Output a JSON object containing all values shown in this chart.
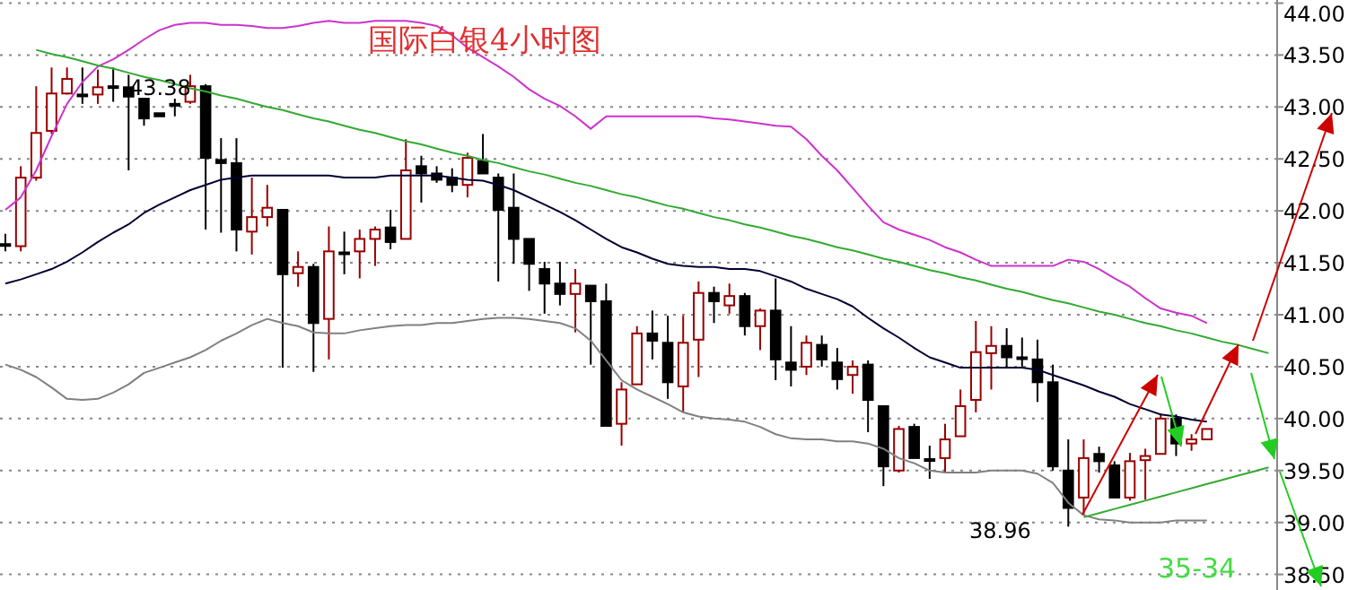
{
  "chart_data": {
    "type": "candlestick",
    "title": "国际白银4小时图",
    "categories": [
      null,
      null,
      null,
      null,
      null,
      null,
      null,
      null,
      null,
      null,
      null,
      null,
      null,
      null,
      null,
      null,
      null,
      null,
      null,
      null,
      null,
      null,
      null,
      null,
      null,
      null,
      null,
      null,
      null,
      null,
      null,
      null,
      null,
      null,
      null,
      null,
      null,
      null,
      null,
      null,
      null,
      null,
      null,
      null,
      null,
      null,
      null,
      null,
      null,
      null,
      null,
      null,
      null,
      null,
      null,
      null,
      null,
      null,
      null,
      null,
      null,
      null,
      null,
      null,
      null,
      null,
      null,
      null,
      null,
      null,
      null,
      null,
      null,
      null,
      null,
      null,
      null,
      null,
      null,
      null,
      null,
      null,
      null
    ],
    "ohlc": [
      [
        41.68,
        41.78,
        41.61,
        41.68
      ],
      [
        41.66,
        42.43,
        41.61,
        42.32
      ],
      [
        42.32,
        43.2,
        42.29,
        42.75
      ],
      [
        42.77,
        43.38,
        42.74,
        43.13
      ],
      [
        43.13,
        43.38,
        43.12,
        43.27
      ],
      [
        43.12,
        43.38,
        43.03,
        43.12
      ],
      [
        43.12,
        43.36,
        43.03,
        43.19
      ],
      [
        43.2,
        43.38,
        43.05,
        43.2
      ],
      [
        43.19,
        43.31,
        42.39,
        43.1
      ],
      [
        43.08,
        43.08,
        42.82,
        42.89
      ],
      [
        42.94,
        42.94,
        42.91,
        42.91
      ],
      [
        43.03,
        43.08,
        42.91,
        43.03
      ],
      [
        43.05,
        43.31,
        43.03,
        43.2
      ],
      [
        43.2,
        43.22,
        41.82,
        42.51
      ],
      [
        42.49,
        42.7,
        41.79,
        42.46
      ],
      [
        42.46,
        42.7,
        41.61,
        41.82
      ],
      [
        41.8,
        42.32,
        41.58,
        41.94
      ],
      [
        41.94,
        42.25,
        41.85,
        42.03
      ],
      [
        42.01,
        42.01,
        40.49,
        41.39
      ],
      [
        41.4,
        41.61,
        41.27,
        41.46
      ],
      [
        41.46,
        41.49,
        40.45,
        40.92
      ],
      [
        40.96,
        41.85,
        40.57,
        41.61
      ],
      [
        41.6,
        41.8,
        41.39,
        41.6
      ],
      [
        41.61,
        41.82,
        41.35,
        41.73
      ],
      [
        41.73,
        41.85,
        41.47,
        41.82
      ],
      [
        41.84,
        42.01,
        41.63,
        41.7
      ],
      [
        41.73,
        42.69,
        41.73,
        42.39
      ],
      [
        42.43,
        42.53,
        42.08,
        42.36
      ],
      [
        42.36,
        42.43,
        42.27,
        42.3
      ],
      [
        42.32,
        42.41,
        42.18,
        42.25
      ],
      [
        42.25,
        42.56,
        42.13,
        42.51
      ],
      [
        42.48,
        42.74,
        42.36,
        42.36
      ],
      [
        42.32,
        42.36,
        41.32,
        42.01
      ],
      [
        42.03,
        42.36,
        41.49,
        41.73
      ],
      [
        41.73,
        41.73,
        41.23,
        41.49
      ],
      [
        41.44,
        41.51,
        41.01,
        41.3
      ],
      [
        41.3,
        41.51,
        41.09,
        41.2
      ],
      [
        41.2,
        41.44,
        40.83,
        41.3
      ],
      [
        41.28,
        41.28,
        40.52,
        41.13
      ],
      [
        41.13,
        41.3,
        39.93,
        39.93
      ],
      [
        39.95,
        40.35,
        39.74,
        40.28
      ],
      [
        40.33,
        40.89,
        40.33,
        40.82
      ],
      [
        40.82,
        41.04,
        40.57,
        40.75
      ],
      [
        40.73,
        40.99,
        40.19,
        40.35
      ],
      [
        40.31,
        40.99,
        40.06,
        40.73
      ],
      [
        40.76,
        41.32,
        40.4,
        41.21
      ],
      [
        41.21,
        41.27,
        40.92,
        41.13
      ],
      [
        41.09,
        41.3,
        41.01,
        41.18
      ],
      [
        41.18,
        41.21,
        40.8,
        40.89
      ],
      [
        40.89,
        41.06,
        40.66,
        41.04
      ],
      [
        41.04,
        41.35,
        40.37,
        40.57
      ],
      [
        40.54,
        40.89,
        40.31,
        40.47
      ],
      [
        40.5,
        40.8,
        40.42,
        40.73
      ],
      [
        40.71,
        40.8,
        40.5,
        40.57
      ],
      [
        40.54,
        40.68,
        40.28,
        40.38
      ],
      [
        40.42,
        40.56,
        40.24,
        40.5
      ],
      [
        40.52,
        40.56,
        39.87,
        40.18
      ],
      [
        40.12,
        40.12,
        39.35,
        39.54
      ],
      [
        39.5,
        39.93,
        39.48,
        39.9
      ],
      [
        39.92,
        39.95,
        39.62,
        39.62
      ],
      [
        39.61,
        39.74,
        39.42,
        39.61
      ],
      [
        39.62,
        39.95,
        39.48,
        39.8
      ],
      [
        39.83,
        40.28,
        39.83,
        40.12
      ],
      [
        40.18,
        40.94,
        40.06,
        40.64
      ],
      [
        40.63,
        40.89,
        40.28,
        40.7
      ],
      [
        40.7,
        40.87,
        40.5,
        40.59
      ],
      [
        40.59,
        40.78,
        40.5,
        40.59
      ],
      [
        40.57,
        40.76,
        40.16,
        40.35
      ],
      [
        40.35,
        40.52,
        39.5,
        39.54
      ],
      [
        39.5,
        39.8,
        38.96,
        39.14
      ],
      [
        39.24,
        39.8,
        39.07,
        39.62
      ],
      [
        39.66,
        39.73,
        39.48,
        39.59
      ],
      [
        39.55,
        39.59,
        39.24,
        39.24
      ],
      [
        39.24,
        39.67,
        39.21,
        39.59
      ],
      [
        39.6,
        39.71,
        39.22,
        39.64
      ],
      [
        39.66,
        40.05,
        39.66,
        40.0
      ],
      [
        40.0,
        40.04,
        39.64,
        39.76
      ],
      [
        39.76,
        39.85,
        39.69,
        39.8
      ],
      [
        39.8,
        39.9,
        39.8,
        39.9
      ],
      null,
      null,
      null,
      null
    ],
    "series": [
      {
        "type": "line",
        "color": "#cc33cc",
        "values": [
          42.01,
          42.13,
          42.39,
          42.72,
          43.03,
          43.24,
          43.39,
          43.46,
          43.55,
          43.65,
          43.74,
          43.79,
          43.81,
          43.81,
          43.79,
          43.79,
          43.78,
          43.76,
          43.76,
          43.78,
          43.81,
          43.83,
          43.81,
          43.81,
          43.83,
          43.83,
          43.83,
          43.81,
          43.78,
          43.69,
          43.57,
          43.48,
          43.39,
          43.29,
          43.17,
          43.08,
          43.01,
          42.91,
          42.79,
          42.91,
          42.91,
          42.91,
          42.91,
          42.91,
          42.91,
          42.91,
          42.89,
          42.88,
          42.86,
          42.84,
          42.82,
          42.81,
          42.69,
          42.53,
          42.39,
          42.22,
          42.05,
          41.89,
          41.82,
          41.77,
          41.72,
          41.65,
          41.6,
          41.53,
          41.47,
          41.47,
          41.47,
          41.47,
          41.47,
          41.53,
          41.51,
          41.44,
          41.35,
          41.27,
          41.16,
          41.06,
          41.02,
          40.99,
          40.92,
          null,
          null,
          null,
          null
        ]
      },
      {
        "type": "line",
        "color": "#000033",
        "values": [
          41.3,
          41.34,
          41.39,
          41.44,
          41.51,
          41.6,
          41.7,
          41.79,
          41.87,
          41.98,
          42.06,
          42.13,
          42.2,
          42.25,
          42.3,
          42.32,
          42.34,
          42.34,
          42.34,
          42.34,
          42.34,
          42.34,
          42.32,
          42.32,
          42.32,
          42.34,
          42.34,
          42.34,
          42.34,
          42.32,
          42.3,
          42.29,
          42.25,
          42.2,
          42.13,
          42.06,
          41.99,
          41.91,
          41.82,
          41.73,
          41.65,
          41.6,
          41.54,
          41.49,
          41.47,
          41.46,
          41.46,
          41.44,
          41.44,
          41.42,
          41.37,
          41.32,
          41.25,
          41.2,
          41.15,
          41.08,
          40.97,
          40.87,
          40.78,
          40.68,
          40.59,
          40.54,
          40.49,
          40.49,
          40.49,
          40.49,
          40.49,
          40.47,
          40.42,
          40.37,
          40.32,
          40.26,
          40.21,
          40.14,
          40.09,
          40.04,
          40.02,
          39.99,
          39.97,
          null,
          null,
          null,
          null
        ]
      },
      {
        "type": "line",
        "color": "#808080",
        "values": [
          40.52,
          40.47,
          40.4,
          40.3,
          40.19,
          40.18,
          40.19,
          40.25,
          40.33,
          40.44,
          40.49,
          40.54,
          40.59,
          40.66,
          40.75,
          40.82,
          40.9,
          40.96,
          40.92,
          40.89,
          40.83,
          40.82,
          40.82,
          40.85,
          40.87,
          40.89,
          40.9,
          40.9,
          40.92,
          40.92,
          40.94,
          40.96,
          40.97,
          40.97,
          40.96,
          40.94,
          40.92,
          40.87,
          40.75,
          40.56,
          40.37,
          40.28,
          40.21,
          40.14,
          40.06,
          40.02,
          40.0,
          39.99,
          39.97,
          39.92,
          39.85,
          39.81,
          39.8,
          39.8,
          39.78,
          39.78,
          39.76,
          39.71,
          39.62,
          39.57,
          39.5,
          39.48,
          39.48,
          39.48,
          39.5,
          39.5,
          39.5,
          39.47,
          39.38,
          39.19,
          39.07,
          39.03,
          39.02,
          39.0,
          39.0,
          39.0,
          39.02,
          39.02,
          39.02,
          null,
          null,
          null,
          null
        ]
      },
      {
        "type": "line",
        "color": "#33aa33",
        "values": [
          null,
          null,
          43.55,
          43.51,
          43.48,
          43.44,
          43.4,
          43.37,
          43.33,
          43.29,
          43.26,
          43.22,
          43.18,
          43.15,
          43.11,
          43.08,
          43.04,
          43.0,
          42.97,
          42.93,
          42.89,
          42.86,
          42.82,
          42.78,
          42.75,
          42.71,
          42.67,
          42.64,
          42.6,
          42.56,
          42.53,
          42.49,
          42.46,
          42.42,
          42.38,
          42.35,
          42.31,
          42.27,
          42.24,
          42.2,
          42.16,
          42.13,
          42.09,
          42.05,
          42.02,
          41.98,
          41.94,
          41.91,
          41.87,
          41.84,
          41.8,
          41.76,
          41.73,
          41.69,
          41.65,
          41.62,
          41.58,
          41.54,
          41.51,
          41.47,
          41.43,
          41.4,
          41.36,
          41.33,
          41.29,
          41.25,
          41.22,
          41.18,
          41.14,
          41.11,
          41.07,
          41.03,
          41.0,
          40.96,
          40.92,
          40.89,
          40.85,
          40.82,
          40.78,
          40.74,
          40.71,
          40.67,
          40.63
        ]
      },
      {
        "type": "line",
        "color": "#33aa33",
        "values": [
          null,
          null,
          null,
          null,
          null,
          null,
          null,
          null,
          null,
          null,
          null,
          null,
          null,
          null,
          null,
          null,
          null,
          null,
          null,
          null,
          null,
          null,
          null,
          null,
          null,
          null,
          null,
          null,
          null,
          null,
          null,
          null,
          null,
          null,
          null,
          null,
          null,
          null,
          null,
          null,
          null,
          null,
          null,
          null,
          null,
          null,
          null,
          null,
          null,
          null,
          null,
          null,
          null,
          null,
          null,
          null,
          null,
          null,
          null,
          null,
          null,
          null,
          null,
          null,
          null,
          null,
          null,
          null,
          null,
          null,
          39.05,
          39.09,
          39.13,
          39.17,
          39.21,
          39.25,
          39.29,
          39.33,
          39.37,
          39.41,
          39.45,
          39.49,
          39.53
        ]
      }
    ],
    "ylim": [
      38.35,
      44.03
    ],
    "yticks": [
      {
        "value": 38.5,
        "label": "38.50"
      },
      {
        "value": 39,
        "label": "39.00"
      },
      {
        "value": 39.5,
        "label": "39.50"
      },
      {
        "value": 40,
        "label": "40.00"
      },
      {
        "value": 40.5,
        "label": "40.50"
      },
      {
        "value": 41,
        "label": "41.00"
      },
      {
        "value": 41.5,
        "label": "41.50"
      },
      {
        "value": 42,
        "label": "42.00"
      },
      {
        "value": 42.5,
        "label": "42.50"
      },
      {
        "value": 43,
        "label": "43.00"
      },
      {
        "value": 43.5,
        "label": "43.50"
      },
      {
        "value": 44,
        "label": "44.00"
      }
    ],
    "grid": "y",
    "tick_labels": "y",
    "annotations": [
      "43.38",
      "38.96",
      "35-34"
    ]
  }
}
